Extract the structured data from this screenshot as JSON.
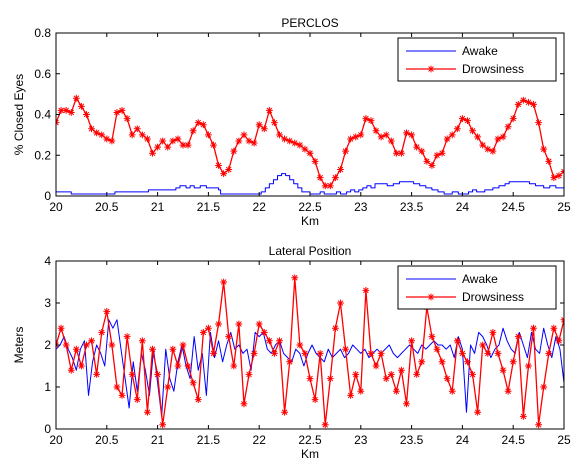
{
  "chart_data": [
    {
      "type": "line",
      "title": "PERCLOS",
      "xlabel": "Km",
      "ylabel": "% Closed Eyes",
      "xlim": [
        20,
        25
      ],
      "ylim": [
        0,
        0.8
      ],
      "xticks": [
        "20",
        "20.5",
        "21",
        "21.5",
        "22",
        "22.5",
        "23",
        "23.5",
        "24",
        "24.5",
        "25"
      ],
      "yticks": [
        "0",
        "0.2",
        "0.4",
        "0.6",
        "0.8"
      ],
      "grid": false,
      "legend": "top-right",
      "series": [
        {
          "name": "Awake",
          "color": "#0000ff",
          "marker": "none",
          "step": true,
          "x": [
            20,
            20.15,
            20.42,
            20.58,
            20.77,
            20.91,
            21.02,
            21.12,
            21.18,
            21.22,
            21.28,
            21.32,
            21.36,
            21.42,
            21.48,
            21.55,
            21.6,
            21.62,
            21.98,
            22.02,
            22.06,
            22.1,
            22.14,
            22.18,
            22.22,
            22.26,
            22.3,
            22.34,
            22.38,
            22.42,
            22.5,
            22.56,
            22.6,
            22.64,
            22.68,
            22.72,
            22.76,
            22.8,
            22.86,
            22.9,
            22.94,
            22.98,
            23.02,
            23.06,
            23.1,
            23.14,
            23.2,
            23.26,
            23.32,
            23.38,
            23.46,
            23.52,
            23.58,
            23.64,
            23.7,
            23.76,
            23.82,
            23.86,
            23.9,
            23.96,
            24.02,
            24.06,
            24.1,
            24.14,
            24.18,
            24.22,
            24.3,
            24.36,
            24.42,
            24.46,
            24.52,
            24.56,
            24.6,
            24.66,
            24.72,
            24.8,
            24.86,
            24.92,
            25
          ],
          "y": [
            0.02,
            0.01,
            0.01,
            0.02,
            0.02,
            0.03,
            0.03,
            0.03,
            0.04,
            0.05,
            0.04,
            0.05,
            0.04,
            0.05,
            0.04,
            0.04,
            0.03,
            0.01,
            0.01,
            0.02,
            0.04,
            0.06,
            0.08,
            0.1,
            0.11,
            0.1,
            0.08,
            0.06,
            0.04,
            0.02,
            0.01,
            0.01,
            0.02,
            0.01,
            0.01,
            0.01,
            0.02,
            0.01,
            0.02,
            0.03,
            0.02,
            0.03,
            0.04,
            0.05,
            0.04,
            0.06,
            0.06,
            0.05,
            0.06,
            0.07,
            0.07,
            0.06,
            0.05,
            0.04,
            0.03,
            0.02,
            0.01,
            0.01,
            0.02,
            0.01,
            0.01,
            0.02,
            0.03,
            0.02,
            0.02,
            0.03,
            0.04,
            0.05,
            0.06,
            0.07,
            0.07,
            0.07,
            0.07,
            0.06,
            0.05,
            0.04,
            0.05,
            0.04,
            0.04
          ]
        },
        {
          "name": "Drowsiness",
          "color": "#ff0000",
          "marker": "*",
          "x": [
            20,
            20.05,
            20.1,
            20.15,
            20.2,
            20.25,
            20.3,
            20.35,
            20.4,
            20.45,
            20.5,
            20.55,
            20.6,
            20.65,
            20.7,
            20.75,
            20.8,
            20.85,
            20.9,
            20.95,
            21,
            21.05,
            21.1,
            21.15,
            21.2,
            21.25,
            21.3,
            21.35,
            21.4,
            21.45,
            21.5,
            21.55,
            21.6,
            21.65,
            21.7,
            21.75,
            21.8,
            21.85,
            21.9,
            21.95,
            22,
            22.05,
            22.1,
            22.15,
            22.2,
            22.25,
            22.3,
            22.35,
            22.4,
            22.45,
            22.5,
            22.55,
            22.6,
            22.65,
            22.7,
            22.75,
            22.8,
            22.85,
            22.9,
            22.95,
            23,
            23.05,
            23.1,
            23.15,
            23.2,
            23.25,
            23.3,
            23.35,
            23.4,
            23.45,
            23.5,
            23.55,
            23.6,
            23.65,
            23.7,
            23.75,
            23.8,
            23.85,
            23.9,
            23.95,
            24,
            24.05,
            24.1,
            24.15,
            24.2,
            24.25,
            24.3,
            24.35,
            24.4,
            24.45,
            24.5,
            24.55,
            24.6,
            24.65,
            24.7,
            24.75,
            24.8,
            24.85,
            24.9,
            24.95,
            25
          ],
          "y": [
            0.36,
            0.42,
            0.42,
            0.41,
            0.48,
            0.44,
            0.4,
            0.33,
            0.31,
            0.3,
            0.28,
            0.27,
            0.41,
            0.42,
            0.38,
            0.3,
            0.33,
            0.3,
            0.28,
            0.21,
            0.24,
            0.27,
            0.24,
            0.27,
            0.28,
            0.25,
            0.25,
            0.32,
            0.36,
            0.35,
            0.3,
            0.25,
            0.15,
            0.11,
            0.13,
            0.22,
            0.27,
            0.3,
            0.27,
            0.26,
            0.35,
            0.33,
            0.42,
            0.36,
            0.3,
            0.28,
            0.27,
            0.26,
            0.25,
            0.23,
            0.21,
            0.17,
            0.09,
            0.05,
            0.05,
            0.09,
            0.13,
            0.22,
            0.28,
            0.29,
            0.3,
            0.38,
            0.37,
            0.32,
            0.29,
            0.3,
            0.27,
            0.21,
            0.21,
            0.31,
            0.3,
            0.24,
            0.22,
            0.17,
            0.15,
            0.2,
            0.21,
            0.28,
            0.3,
            0.33,
            0.38,
            0.37,
            0.32,
            0.29,
            0.25,
            0.23,
            0.22,
            0.28,
            0.29,
            0.34,
            0.38,
            0.45,
            0.47,
            0.46,
            0.45,
            0.36,
            0.23,
            0.17,
            0.09,
            0.1,
            0.12
          ]
        }
      ]
    },
    {
      "type": "line",
      "title": "Lateral Position",
      "xlabel": "Km",
      "ylabel": "Meters",
      "xlim": [
        20,
        25
      ],
      "ylim": [
        0,
        4
      ],
      "xticks": [
        "20",
        "20.5",
        "21",
        "21.5",
        "22",
        "22.5",
        "23",
        "23.5",
        "24",
        "24.5",
        "25"
      ],
      "yticks": [
        "0",
        "1",
        "2",
        "3",
        "4"
      ],
      "grid": false,
      "legend": "top-right",
      "series": [
        {
          "name": "Awake",
          "color": "#0000ff",
          "marker": "none",
          "x": [
            20,
            20.04,
            20.08,
            20.12,
            20.16,
            20.2,
            20.24,
            20.28,
            20.32,
            20.36,
            20.4,
            20.44,
            20.48,
            20.52,
            20.56,
            20.6,
            20.64,
            20.68,
            20.72,
            20.76,
            20.8,
            20.84,
            20.88,
            20.92,
            20.96,
            21,
            21.04,
            21.08,
            21.12,
            21.16,
            21.2,
            21.24,
            21.28,
            21.32,
            21.36,
            21.4,
            21.44,
            21.48,
            21.52,
            21.56,
            21.6,
            21.64,
            21.68,
            21.72,
            21.76,
            21.8,
            21.84,
            21.88,
            21.92,
            21.96,
            22,
            22.04,
            22.08,
            22.12,
            22.16,
            22.2,
            22.24,
            22.28,
            22.32,
            22.36,
            22.4,
            22.44,
            22.48,
            22.52,
            22.56,
            22.6,
            22.64,
            22.68,
            22.72,
            22.76,
            22.8,
            22.84,
            22.88,
            22.92,
            22.96,
            23,
            23.04,
            23.08,
            23.12,
            23.16,
            23.2,
            23.24,
            23.28,
            23.32,
            23.36,
            23.4,
            23.44,
            23.48,
            23.52,
            23.56,
            23.6,
            23.64,
            23.68,
            23.72,
            23.76,
            23.8,
            23.84,
            23.88,
            23.92,
            23.96,
            24,
            24.04,
            24.08,
            24.12,
            24.16,
            24.2,
            24.24,
            24.28,
            24.32,
            24.36,
            24.4,
            24.44,
            24.48,
            24.52,
            24.56,
            24.6,
            24.64,
            24.68,
            24.72,
            24.76,
            24.8,
            24.84,
            24.88,
            24.92,
            24.96,
            25
          ],
          "y": [
            1.9,
            2.0,
            2.2,
            1.9,
            1.7,
            1.4,
            1.9,
            2.1,
            0.8,
            1.6,
            2.0,
            1.8,
            1.5,
            2.6,
            2.4,
            2.6,
            1.9,
            1.2,
            0.5,
            1.6,
            0.9,
            1.8,
            1.4,
            0.8,
            1.9,
            1.1,
            0.3,
            1.9,
            1.2,
            0.9,
            1.6,
            2.0,
            1.5,
            1.2,
            2.2,
            1.4,
            1.8,
            0.8,
            2.3,
            1.7,
            2.1,
            1.6,
            2.0,
            2.3,
            1.9,
            2.0,
            1.8,
            1.9,
            1.4,
            2.3,
            2.2,
            2.3,
            1.9,
            1.8,
            2.0,
            2.1,
            1.8,
            1.7,
            1.6,
            1.9,
            1.8,
            1.5,
            1.8,
            2.0,
            1.8,
            1.7,
            1.6,
            1.9,
            1.7,
            1.8,
            1.9,
            1.7,
            1.8,
            2.0,
            1.9,
            1.8,
            1.9,
            1.7,
            1.8,
            1.9,
            1.8,
            1.9,
            2.0,
            1.8,
            1.7,
            1.8,
            1.9,
            2.0,
            1.9,
            1.8,
            2.0,
            1.9,
            2.0,
            2.1,
            2.0,
            2.0,
            1.9,
            2.0,
            1.7,
            2.2,
            1.9,
            0.4,
            2.0,
            1.8,
            2.3,
            2.2,
            2.0,
            1.7,
            1.9,
            2.0,
            2.4,
            2.1,
            1.9,
            1.8,
            2.3,
            2.0,
            1.7,
            2.3,
            1.9,
            1.8,
            2.4,
            2.0,
            1.7,
            2.2,
            1.9,
            1.1
          ]
        },
        {
          "name": "Drowsiness",
          "color": "#ff0000",
          "marker": "*",
          "x": [
            20,
            20.05,
            20.1,
            20.15,
            20.2,
            20.25,
            20.3,
            20.35,
            20.4,
            20.45,
            20.5,
            20.55,
            20.6,
            20.65,
            20.7,
            20.75,
            20.8,
            20.85,
            20.9,
            20.95,
            21,
            21.05,
            21.1,
            21.15,
            21.2,
            21.25,
            21.3,
            21.35,
            21.4,
            21.45,
            21.5,
            21.55,
            21.6,
            21.65,
            21.7,
            21.75,
            21.8,
            21.85,
            21.9,
            21.95,
            22,
            22.05,
            22.1,
            22.15,
            22.2,
            22.25,
            22.3,
            22.35,
            22.4,
            22.45,
            22.5,
            22.55,
            22.6,
            22.65,
            22.7,
            22.75,
            22.8,
            22.85,
            22.9,
            22.95,
            23,
            23.05,
            23.1,
            23.15,
            23.2,
            23.25,
            23.3,
            23.35,
            23.4,
            23.45,
            23.5,
            23.55,
            23.6,
            23.65,
            23.7,
            23.75,
            23.8,
            23.85,
            23.9,
            23.95,
            24,
            24.05,
            24.1,
            24.15,
            24.2,
            24.25,
            24.3,
            24.35,
            24.4,
            24.45,
            24.5,
            24.55,
            24.6,
            24.65,
            24.7,
            24.75,
            24.8,
            24.85,
            24.9,
            24.95,
            25
          ],
          "y": [
            2.0,
            2.4,
            2.0,
            1.4,
            1.9,
            1.5,
            2.0,
            2.1,
            1.3,
            2.3,
            2.8,
            2.0,
            1.0,
            0.8,
            2.2,
            1.3,
            0.7,
            2.1,
            0.4,
            1.9,
            1.3,
            0.1,
            1.0,
            1.9,
            1.5,
            2.0,
            1.5,
            1.1,
            0.7,
            2.3,
            2.4,
            1.8,
            2.5,
            3.5,
            2.2,
            1.5,
            2.5,
            0.6,
            1.3,
            1.8,
            2.5,
            2.3,
            2.1,
            1.8,
            2.1,
            0.4,
            1.6,
            3.6,
            2.0,
            1.8,
            1.2,
            0.7,
            1.8,
            0.1,
            1.2,
            2.4,
            3.0,
            1.9,
            0.8,
            1.3,
            0.9,
            3.3,
            1.8,
            1.5,
            1.8,
            1.2,
            1.3,
            0.9,
            1.4,
            0.6,
            2.1,
            1.3,
            1.6,
            2.9,
            2.2,
            1.9,
            1.6,
            1.2,
            0.9,
            2.1,
            1.8,
            1.6,
            1.3,
            0.4,
            2.0,
            1.8,
            2.3,
            1.8,
            1.4,
            0.9,
            1.6,
            2.2,
            0.3,
            1.5,
            2.4,
            0.1,
            1.0,
            1.8,
            2.4,
            2.1,
            2.6
          ]
        }
      ]
    }
  ]
}
